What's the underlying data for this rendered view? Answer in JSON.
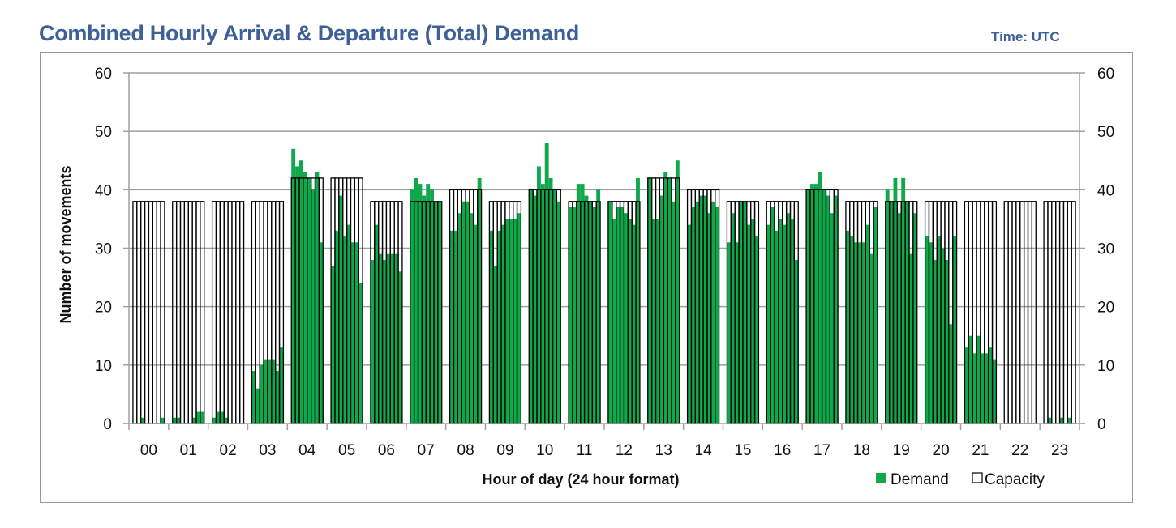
{
  "header": {
    "title": "Combined Hourly Arrival & Departure (Total) Demand",
    "timezone": "Time: UTC"
  },
  "colors": {
    "title": "#3d6197",
    "demand": "#0fa84a",
    "capacity_stroke": "#000000",
    "grid": "#a0a0a0"
  },
  "chart_data": {
    "type": "bar",
    "title": "Combined Hourly Arrival & Departure (Total) Demand",
    "xlabel": "Hour of day (24 hour format)",
    "ylabel": "Number of movements",
    "ylim": [
      0,
      60
    ],
    "yticks": [
      "0",
      "10",
      "20",
      "30",
      "40",
      "50",
      "60"
    ],
    "ytick_values": [
      0,
      10,
      20,
      30,
      40,
      50,
      60
    ],
    "grid": true,
    "legend_position": "bottom-right",
    "bars_per_category": 8,
    "categories": [
      "00",
      "01",
      "02",
      "03",
      "04",
      "05",
      "06",
      "07",
      "08",
      "09",
      "10",
      "11",
      "12",
      "13",
      "14",
      "15",
      "16",
      "17",
      "18",
      "19",
      "20",
      "21",
      "22",
      "23"
    ],
    "series": [
      {
        "name": "Demand",
        "values": [
          [
            0,
            0,
            1,
            0,
            0,
            0,
            0,
            1
          ],
          [
            1,
            1,
            0,
            0,
            0,
            1,
            2,
            2
          ],
          [
            1,
            2,
            2,
            1,
            0,
            0,
            0,
            0
          ],
          [
            9,
            6,
            10,
            11,
            11,
            11,
            9,
            13
          ],
          [
            47,
            44,
            45,
            43,
            42,
            40,
            43,
            31
          ],
          [
            27,
            33,
            39,
            32,
            34,
            31,
            31,
            24
          ],
          [
            28,
            34,
            29,
            28,
            29,
            29,
            29,
            26
          ],
          [
            40,
            42,
            41,
            39,
            41,
            40,
            38,
            38
          ],
          [
            33,
            33,
            36,
            38,
            38,
            36,
            34,
            42
          ],
          [
            33,
            27,
            33,
            34,
            35,
            35,
            35,
            36
          ],
          [
            40,
            39,
            44,
            41,
            48,
            42,
            40,
            38
          ],
          [
            37,
            37,
            41,
            41,
            39,
            38,
            37,
            40
          ],
          [
            38,
            35,
            37,
            37,
            36,
            35,
            34,
            42
          ],
          [
            42,
            35,
            35,
            39,
            43,
            42,
            38,
            45
          ],
          [
            34,
            37,
            38,
            39,
            39,
            36,
            38,
            37
          ],
          [
            31,
            36,
            31,
            38,
            38,
            34,
            35,
            32
          ],
          [
            34,
            37,
            33,
            35,
            34,
            36,
            35,
            28
          ],
          [
            40,
            41,
            41,
            43,
            40,
            39,
            36,
            39
          ],
          [
            33,
            32,
            31,
            31,
            31,
            34,
            29,
            37
          ],
          [
            40,
            38,
            42,
            36,
            42,
            38,
            29,
            36
          ],
          [
            32,
            31,
            28,
            32,
            30,
            28,
            17,
            32
          ],
          [
            13,
            15,
            12,
            15,
            12,
            12,
            13,
            11
          ],
          [
            0,
            0,
            0,
            0,
            0,
            0,
            0,
            0
          ],
          [
            0,
            1,
            0,
            0,
            1,
            0,
            1,
            0
          ]
        ]
      },
      {
        "name": "Capacity",
        "values": [
          38,
          38,
          38,
          38,
          42,
          42,
          38,
          38,
          40,
          38,
          40,
          38,
          38,
          42,
          40,
          38,
          38,
          40,
          38,
          38,
          38,
          38,
          38,
          38
        ]
      }
    ],
    "legend": [
      {
        "label": "Demand",
        "style": "filled-green"
      },
      {
        "label": "Capacity",
        "style": "outline"
      }
    ]
  }
}
